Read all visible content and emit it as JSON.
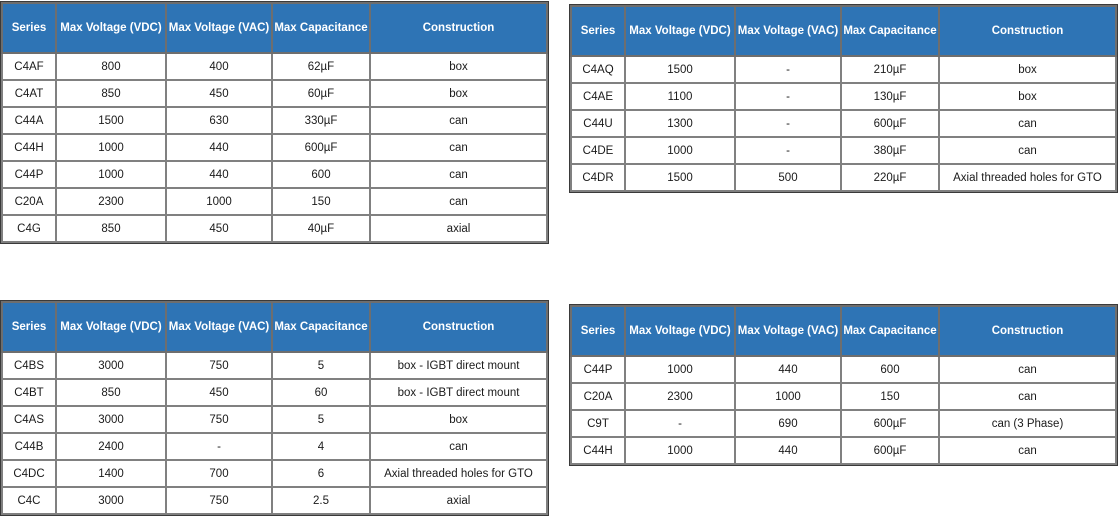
{
  "page": {
    "background": "#FFFFFF"
  },
  "columns": [
    "Series",
    "Max Voltage (VDC)",
    "Max Voltage (VAC)",
    "Max Capacitance",
    "Construction"
  ],
  "tables": [
    {
      "name": "capacitor-series-table-top-left",
      "rows": [
        [
          "C4AF",
          "800",
          "400",
          "62µF",
          "box"
        ],
        [
          "C4AT",
          "850",
          "450",
          "60µF",
          "box"
        ],
        [
          "C44A",
          "1500",
          "630",
          "330µF",
          "can"
        ],
        [
          "C44H",
          "1000",
          "440",
          "600µF",
          "can"
        ],
        [
          "C44P",
          "1000",
          "440",
          "600",
          "can"
        ],
        [
          "C20A",
          "2300",
          "1000",
          "150",
          "can"
        ],
        [
          "C4G",
          "850",
          "450",
          "40µF",
          "axial"
        ]
      ]
    },
    {
      "name": "capacitor-series-table-top-right",
      "rows": [
        [
          "C4AQ",
          "1500",
          "-",
          "210µF",
          "box"
        ],
        [
          "C4AE",
          "1100",
          "-",
          "130µF",
          "box"
        ],
        [
          "C44U",
          "1300",
          "-",
          "600µF",
          "can"
        ],
        [
          "C4DE",
          "1000",
          "-",
          "380µF",
          "can"
        ],
        [
          "C4DR",
          "1500",
          "500",
          "220µF",
          "Axial threaded holes for GTO"
        ]
      ]
    },
    {
      "name": "capacitor-series-table-bottom-left",
      "rows": [
        [
          "C4BS",
          "3000",
          "750",
          "5",
          "box - IGBT direct mount"
        ],
        [
          "C4BT",
          "850",
          "450",
          "60",
          "box - IGBT direct mount"
        ],
        [
          "C4AS",
          "3000",
          "750",
          "5",
          "box"
        ],
        [
          "C44B",
          "2400",
          "-",
          "4",
          "can"
        ],
        [
          "C4DC",
          "1400",
          "700",
          "6",
          "Axial threaded holes for GTO"
        ],
        [
          "C4C",
          "3000",
          "750",
          "2.5",
          "axial"
        ]
      ]
    },
    {
      "name": "capacitor-series-table-bottom-right",
      "rows": [
        [
          "C44P",
          "1000",
          "440",
          "600",
          "can"
        ],
        [
          "C20A",
          "2300",
          "1000",
          "150",
          "can"
        ],
        [
          "C9T",
          "-",
          "690",
          "600µF",
          "can (3 Phase)"
        ],
        [
          "C44H",
          "1000",
          "440",
          "600µF",
          "can"
        ]
      ]
    }
  ],
  "colors": {
    "header_bg": "#2E74B5",
    "header_text": "#FFFFFF",
    "cell_bg": "#FFFFFF",
    "cell_text": "#1A1A1A",
    "border_inner": "#808080",
    "border_outer": "#3A3A3A"
  }
}
